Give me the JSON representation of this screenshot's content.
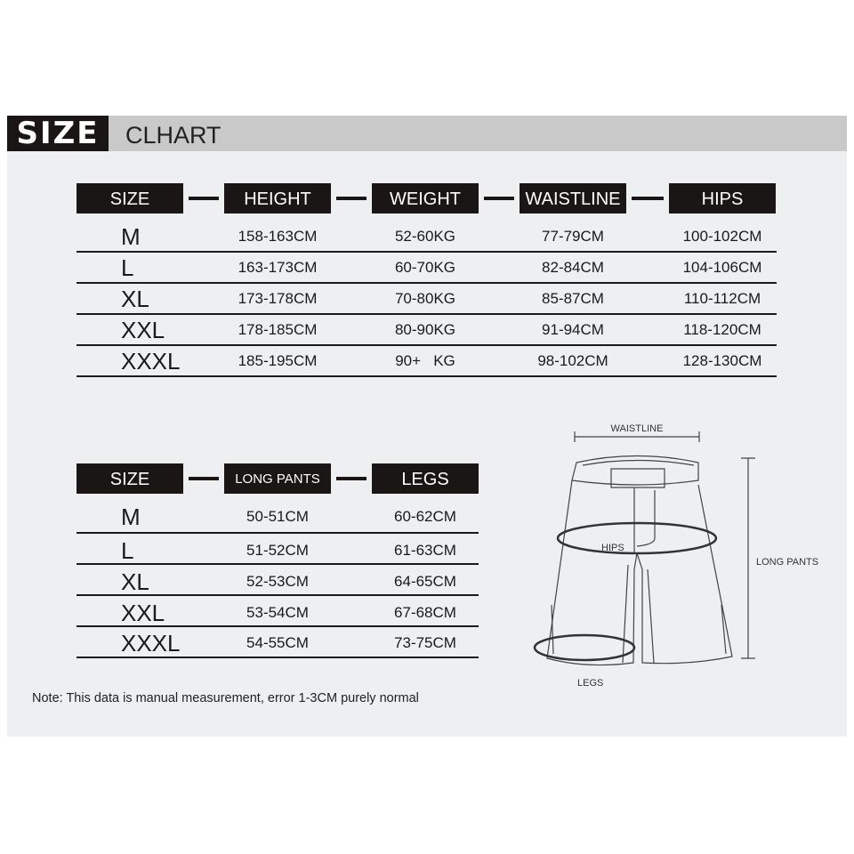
{
  "header": {
    "logo_text": "SIZE",
    "title": "CLHART"
  },
  "table1": {
    "headers": [
      "SIZE",
      "HEIGHT",
      "WEIGHT",
      "WAISTLINE",
      "HIPS"
    ],
    "rows": [
      [
        "M",
        "158-163CM",
        "52-60KG",
        "77-79CM",
        "100-102CM"
      ],
      [
        "L",
        "163-173CM",
        "60-70KG",
        "82-84CM",
        "104-106CM"
      ],
      [
        "XL",
        "173-178CM",
        "70-80KG",
        "85-87CM",
        "110-112CM"
      ],
      [
        "XXL",
        "178-185CM",
        "80-90KG",
        "91-94CM",
        "118-120CM"
      ],
      [
        "XXXL",
        "185-195CM",
        "90+   KG",
        "98-102CM",
        "128-130CM"
      ]
    ]
  },
  "table2": {
    "headers": [
      "SIZE",
      "LONG PANTS",
      "LEGS"
    ],
    "rows": [
      [
        "M",
        "50-51CM",
        "60-62CM"
      ],
      [
        "L",
        "51-52CM",
        "61-63CM"
      ],
      [
        "XL",
        "52-53CM",
        "64-65CM"
      ],
      [
        "XXL",
        "53-54CM",
        "67-68CM"
      ],
      [
        "XXXL",
        "54-55CM",
        "73-75CM"
      ]
    ]
  },
  "diagram": {
    "waistline": "WAISTLINE",
    "hips": "HIPS",
    "long_pants": "LONG PANTS",
    "legs": "LEGS"
  },
  "note": "Note: This data is manual measurement, error 1-3CM purely normal"
}
